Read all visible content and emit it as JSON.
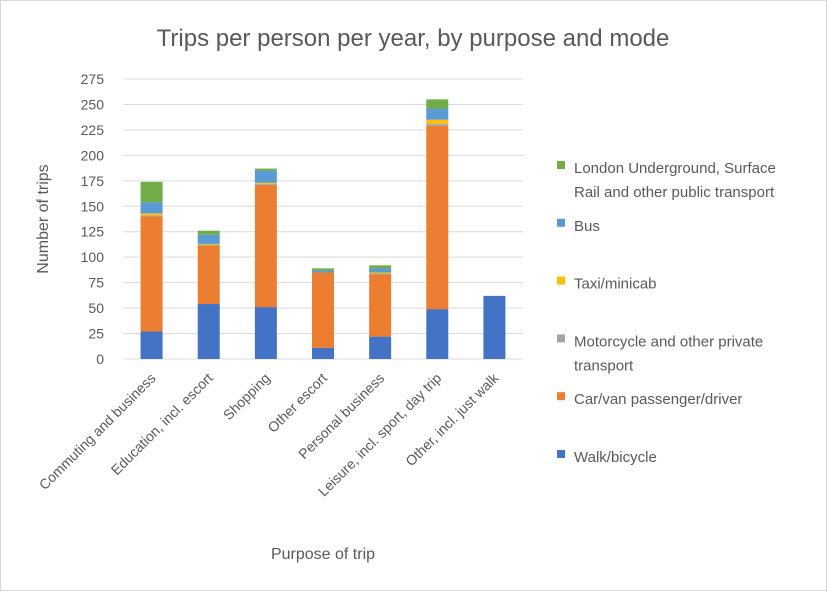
{
  "chart_data": {
    "type": "bar",
    "stacked": true,
    "title": "Trips per person per year, by purpose and mode",
    "xlabel": "Purpose of trip",
    "ylabel": "Number of trips",
    "ylim": [
      0,
      275
    ],
    "yticks": [
      0,
      25,
      50,
      75,
      100,
      125,
      150,
      175,
      200,
      225,
      250,
      275
    ],
    "grid": true,
    "legend_position": "right",
    "categories": [
      "Commuting and business",
      "Education, incl. escort",
      "Shopping",
      "Other escort",
      "Personal business",
      "Leisure, incl. sport, day trip",
      "Other, incl. just walk"
    ],
    "series": [
      {
        "name": "Walk/bicycle",
        "color": "#4472c4",
        "values": [
          27,
          54,
          51,
          11,
          22,
          49,
          62
        ]
      },
      {
        "name": "Car/van passenger/driver",
        "color": "#ed7d31",
        "values": [
          113,
          57,
          120,
          74,
          61,
          180,
          0
        ]
      },
      {
        "name": "Motorcycle and other private transport",
        "color": "#a5a5a5",
        "values": [
          1,
          1,
          1,
          0,
          1,
          2,
          0
        ]
      },
      {
        "name": "Taxi/minicab",
        "color": "#ffc000",
        "values": [
          2,
          1,
          1,
          0,
          1,
          4,
          0
        ]
      },
      {
        "name": "Bus",
        "color": "#5b9bd5",
        "values": [
          11,
          9,
          12,
          2,
          4,
          11,
          0
        ]
      },
      {
        "name": "London Underground, Surface Rail and other public transport",
        "color": "#70ad47",
        "values": [
          20,
          4,
          2,
          2,
          3,
          9,
          0
        ]
      }
    ],
    "legend_order": [
      5,
      4,
      3,
      2,
      1,
      0
    ],
    "legend_lines": [
      [
        "London Underground, Surface",
        "Rail and other public transport"
      ],
      [
        "Bus"
      ],
      [
        "Taxi/minicab"
      ],
      [
        "Motorcycle and other private",
        "transport"
      ],
      [
        "Car/van passenger/driver"
      ],
      [
        "Walk/bicycle"
      ]
    ]
  }
}
